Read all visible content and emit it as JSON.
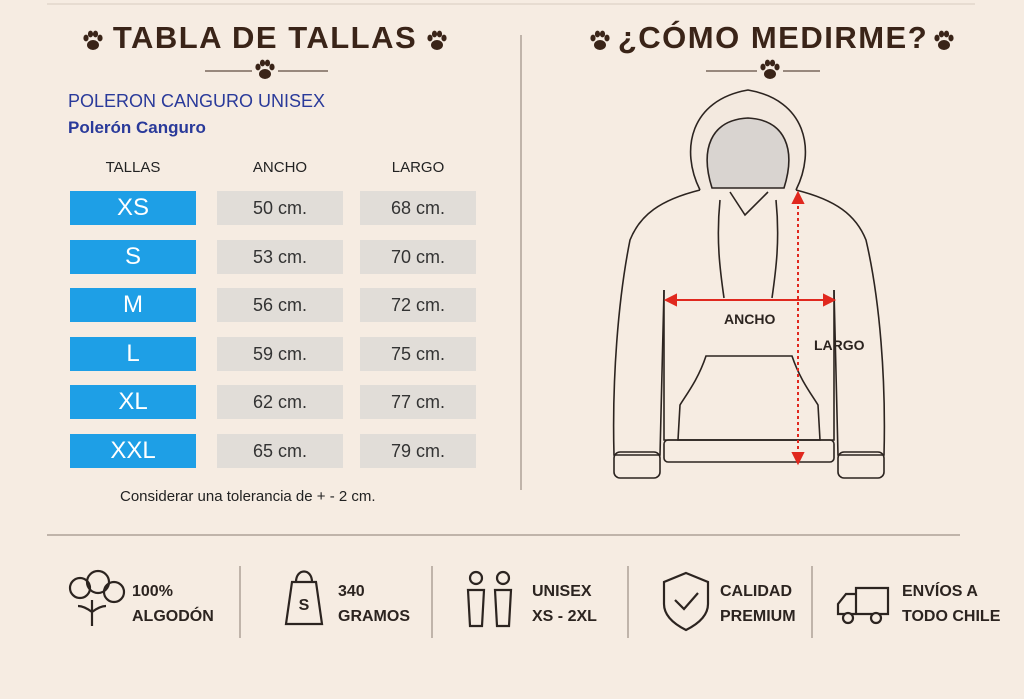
{
  "left": {
    "title": "TABLA DE TALLAS",
    "product": "POLERON CANGURO UNISEX",
    "subtitle": "Polerón Canguro",
    "note": "Considerar una tolerancia de + - 2 cm."
  },
  "table": {
    "headers": [
      "TALLAS",
      "ANCHO",
      "LARGO"
    ],
    "rows": [
      [
        "XS",
        "50 cm.",
        "68 cm."
      ],
      [
        "S",
        "53 cm.",
        "70 cm."
      ],
      [
        "M",
        "56 cm.",
        "72 cm."
      ],
      [
        "L",
        "59 cm.",
        "75 cm."
      ],
      [
        "XL",
        "62 cm.",
        "77 cm."
      ],
      [
        "XXL",
        "65 cm.",
        "79 cm."
      ]
    ]
  },
  "right": {
    "title": "¿CÓMO MEDIRME?",
    "width_label": "ANCHO",
    "length_label": "LARGO"
  },
  "features": [
    {
      "line1": "100%",
      "line2": "ALGODÓN"
    },
    {
      "line1": "340",
      "line2": "GRAMOS"
    },
    {
      "line1": "UNISEX",
      "line2": "XS - 2XL"
    },
    {
      "line1": "CALIDAD",
      "line2": "PREMIUM"
    },
    {
      "line1": "ENVÍOS A",
      "line2": "TODO CHILE"
    }
  ]
}
